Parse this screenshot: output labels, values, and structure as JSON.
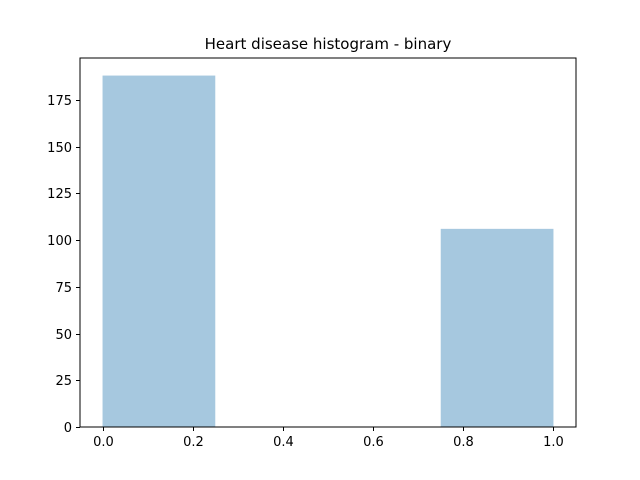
{
  "chart_data": {
    "type": "bar",
    "title": "Heart disease histogram - binary",
    "xlabel": "",
    "ylabel": "",
    "bins": [
      {
        "x0": 0.0,
        "x1": 0.25,
        "count": 188
      },
      {
        "x0": 0.25,
        "x1": 0.5,
        "count": 0
      },
      {
        "x0": 0.5,
        "x1": 0.75,
        "count": 0
      },
      {
        "x0": 0.75,
        "x1": 1.0,
        "count": 106
      }
    ],
    "xlim": [
      -0.05,
      1.05
    ],
    "ylim": [
      0,
      197.4
    ],
    "xticks": [
      0.0,
      0.2,
      0.4,
      0.6,
      0.8,
      1.0
    ],
    "xtick_labels": [
      "0.0",
      "0.2",
      "0.4",
      "0.6",
      "0.8",
      "1.0"
    ],
    "yticks": [
      0,
      25,
      50,
      75,
      100,
      125,
      150,
      175
    ],
    "ytick_labels": [
      "0",
      "25",
      "50",
      "75",
      "100",
      "125",
      "150",
      "175"
    ],
    "bar_color": "#a6c8df",
    "grid": false,
    "legend": "none"
  }
}
